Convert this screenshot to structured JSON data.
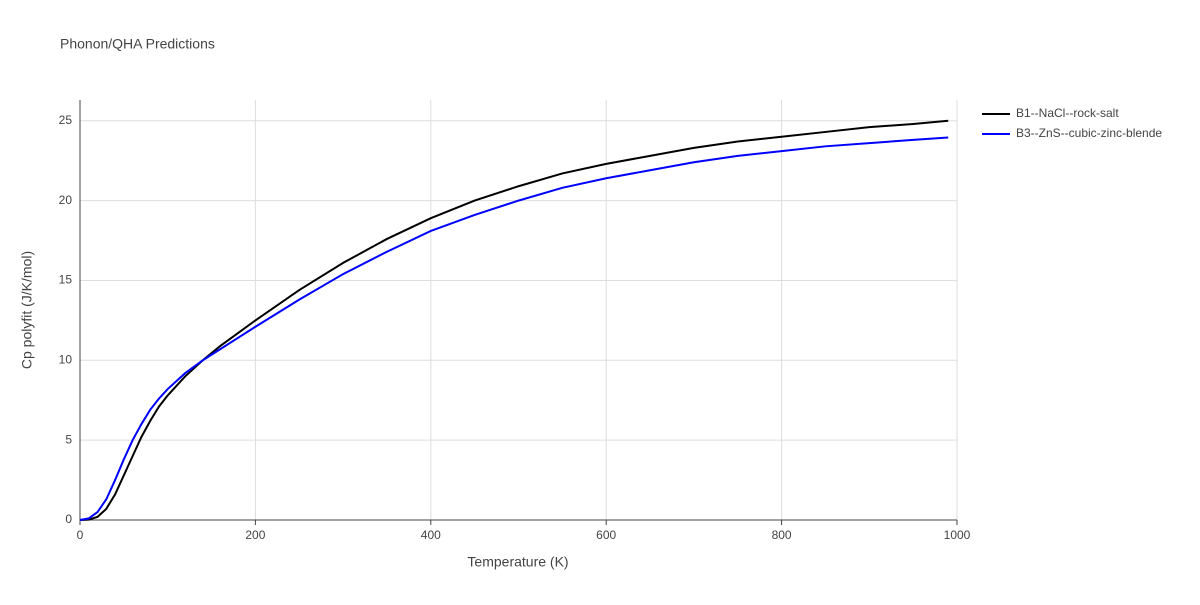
{
  "chart_data": {
    "type": "line",
    "title": "Phonon/QHA Predictions",
    "x_label": "Temperature (K)",
    "y_label": "Cp polyfit (J/K/mol)",
    "x": [
      0,
      10,
      20,
      30,
      40,
      50,
      60,
      70,
      80,
      90,
      100,
      120,
      140,
      160,
      180,
      200,
      250,
      300,
      350,
      400,
      450,
      500,
      550,
      600,
      650,
      700,
      750,
      800,
      850,
      900,
      950,
      990
    ],
    "series": [
      {
        "name": "B1--NaCl--rock-salt",
        "color": "#000000",
        "values": [
          0,
          0.02,
          0.2,
          0.7,
          1.6,
          2.8,
          4.0,
          5.2,
          6.2,
          7.1,
          7.8,
          9.0,
          10.0,
          10.9,
          11.7,
          12.5,
          14.4,
          16.1,
          17.6,
          18.9,
          20.0,
          20.9,
          21.7,
          22.3,
          22.8,
          23.3,
          23.7,
          24.0,
          24.3,
          24.6,
          24.8,
          25.0
        ]
      },
      {
        "name": "B3--ZnS--cubic-zinc-blende",
        "color": "#0000ff",
        "values": [
          0,
          0.1,
          0.5,
          1.3,
          2.5,
          3.8,
          5.0,
          6.0,
          6.9,
          7.6,
          8.2,
          9.2,
          10.0,
          10.7,
          11.4,
          12.1,
          13.8,
          15.4,
          16.8,
          18.1,
          19.1,
          20.0,
          20.8,
          21.4,
          21.9,
          22.4,
          22.8,
          23.1,
          23.4,
          23.6,
          23.8,
          23.95
        ]
      }
    ],
    "xlim": [
      0,
      1000
    ],
    "ylim": [
      0,
      26.3
    ],
    "xticks": [
      0,
      200,
      400,
      600,
      800,
      1000
    ],
    "yticks": [
      0,
      5,
      10,
      15,
      20,
      25
    ],
    "grid": true,
    "legend": "right"
  }
}
